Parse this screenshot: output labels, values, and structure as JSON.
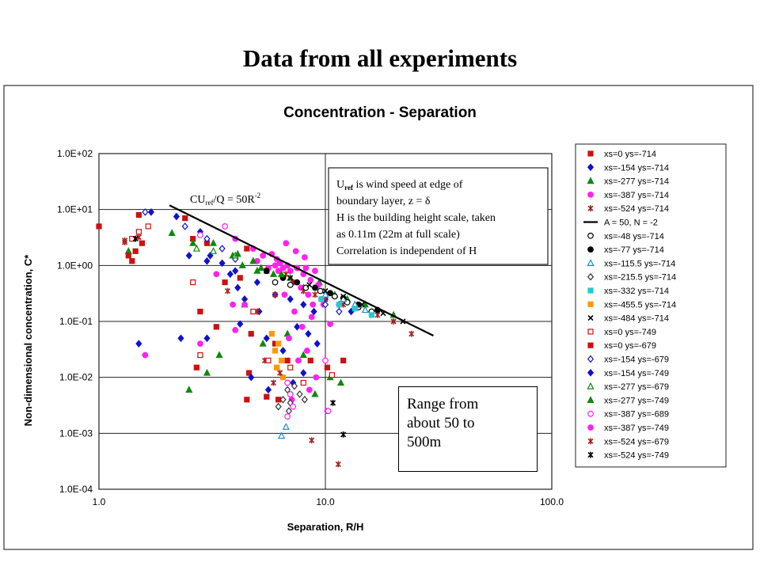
{
  "slide": {
    "title": "Data from all experiments",
    "callout_lines": [
      "Range from",
      "about 50 to",
      "500m"
    ]
  },
  "chart_data": {
    "type": "scatter",
    "title": "Concentration - Separation",
    "xlabel": "Separation, R/H",
    "ylabel": "Non-dimensional concentration, C*",
    "x_scale": "log",
    "y_scale": "log",
    "xlim": [
      1.0,
      100.0
    ],
    "ylim": [
      0.0001,
      100
    ],
    "x_ticks": [
      "1.0",
      "10.0",
      "100.0"
    ],
    "y_ticks": [
      "1.0E-04",
      "1.0E-03",
      "1.0E-02",
      "1.0E-01",
      "1.0E+00",
      "1.0E+01",
      "1.0E+02"
    ],
    "grid": true,
    "legend_position": "right",
    "formula_label": {
      "main": "CU",
      "sub": "ref",
      "rest": "/Q = 50R",
      "sup": "-2"
    },
    "annotation_lines": [
      {
        "main": "U",
        "sub": "ref",
        "rest": " is wind speed at edge of"
      },
      {
        "main": "boundary layer, z = δ",
        "sub": "",
        "rest": ""
      },
      {
        "main": "H is the building height scale, taken",
        "sub": "",
        "rest": ""
      },
      {
        "main": "as 0.11m (22m at full scale)",
        "sub": "",
        "rest": ""
      },
      {
        "main": "Correlation is independent of H",
        "sub": "",
        "rest": ""
      }
    ],
    "fit_line": {
      "name": "A = 50, N = -2",
      "A": 50,
      "N": -2,
      "x_range": [
        2.05,
        30
      ],
      "color": "#000000"
    },
    "series": [
      {
        "name": "xs=0 ys=-714",
        "marker": "square",
        "filled": true,
        "color": "#cc1111",
        "points": [
          [
            1.0,
            5
          ],
          [
            2.4,
            7
          ],
          [
            2.6,
            3
          ],
          [
            3.0,
            2.5
          ],
          [
            4.5,
            2.0
          ],
          [
            4.2,
            0.6
          ],
          [
            5.5,
            0.8
          ],
          [
            6.3,
            1.1
          ],
          [
            3.6,
            0.5
          ],
          [
            2.8,
            0.15
          ],
          [
            3.3,
            0.08
          ],
          [
            4.7,
            0.06
          ],
          [
            6.0,
            0.04
          ],
          [
            2.7,
            0.015
          ],
          [
            4.6,
            0.012
          ],
          [
            6.8,
            0.02
          ],
          [
            8.6,
            0.02
          ],
          [
            10.2,
            0.015
          ],
          [
            12.0,
            0.02
          ],
          [
            6.2,
            0.004
          ]
        ]
      },
      {
        "name": "xs=-154 ys=-714",
        "marker": "diamond",
        "filled": true,
        "color": "#1111cc",
        "points": [
          [
            1.7,
            9
          ],
          [
            2.2,
            7.5
          ],
          [
            2.8,
            4
          ],
          [
            3.1,
            1.5
          ],
          [
            3.5,
            1.1
          ],
          [
            3.8,
            0.7
          ],
          [
            4.1,
            0.4
          ],
          [
            4.4,
            0.25
          ],
          [
            5.1,
            0.15
          ],
          [
            6.0,
            0.3
          ],
          [
            7.0,
            0.25
          ],
          [
            8.0,
            0.2
          ],
          [
            8.9,
            0.15
          ],
          [
            10.0,
            0.25
          ],
          [
            11.5,
            0.2
          ],
          [
            13.0,
            0.15
          ],
          [
            4.2,
            0.09
          ],
          [
            5.5,
            0.05
          ],
          [
            3.0,
            0.05
          ],
          [
            6.5,
            0.03
          ],
          [
            7.5,
            0.08
          ],
          [
            8.4,
            0.06
          ],
          [
            9.2,
            0.04
          ],
          [
            1.5,
            0.04
          ],
          [
            2.3,
            0.05
          ],
          [
            4.7,
            0.01
          ],
          [
            7.2,
            0.008
          ],
          [
            8.0,
            0.012
          ],
          [
            5.6,
            0.006
          ]
        ]
      },
      {
        "name": "xs=-277 ys=-714",
        "marker": "triangle",
        "filled": true,
        "color": "#118811",
        "points": [
          [
            1.35,
            1.8
          ],
          [
            2.1,
            3.8
          ],
          [
            3.2,
            2.5
          ],
          [
            3.9,
            1.5
          ],
          [
            4.3,
            1.0
          ],
          [
            5.0,
            0.8
          ],
          [
            5.9,
            0.7
          ],
          [
            7.0,
            0.6
          ],
          [
            8.0,
            0.4
          ],
          [
            9.4,
            0.5
          ],
          [
            11.0,
            0.3
          ],
          [
            12.5,
            0.25
          ],
          [
            15.0,
            0.2
          ],
          [
            20.0,
            0.13
          ],
          [
            2.5,
            0.006
          ],
          [
            3.0,
            0.012
          ],
          [
            3.4,
            0.025
          ],
          [
            4.4,
            0.2
          ],
          [
            5.3,
            0.04
          ],
          [
            6.8,
            0.06
          ],
          [
            8.0,
            0.025
          ],
          [
            9.0,
            0.005
          ],
          [
            10.5,
            0.01
          ],
          [
            11.7,
            0.008
          ]
        ]
      },
      {
        "name": "xs=-387 ys=-714",
        "marker": "circle",
        "filled": true,
        "color": "#ff22ee",
        "points": [
          [
            1.6,
            0.025
          ],
          [
            2.8,
            0.04
          ],
          [
            3.3,
            0.7
          ],
          [
            3.9,
            0.2
          ],
          [
            4.0,
            0.07
          ],
          [
            4.4,
            0.2
          ],
          [
            5.0,
            1.2
          ],
          [
            5.6,
            0.9
          ],
          [
            6.0,
            1.0
          ],
          [
            6.2,
            0.8
          ],
          [
            6.5,
            0.9
          ],
          [
            6.8,
            1.0
          ],
          [
            7.0,
            0.8
          ],
          [
            7.2,
            0.5
          ],
          [
            7.5,
            0.9
          ],
          [
            7.8,
            0.4
          ],
          [
            8.0,
            0.7
          ],
          [
            8.2,
            0.9
          ],
          [
            8.4,
            0.3
          ],
          [
            8.6,
            0.55
          ],
          [
            8.8,
            0.2
          ],
          [
            9.0,
            0.8
          ],
          [
            9.3,
            0.45
          ],
          [
            9.6,
            0.25
          ],
          [
            6.6,
            0.3
          ],
          [
            7.3,
            0.15
          ],
          [
            7.9,
            0.08
          ],
          [
            8.7,
            0.12
          ],
          [
            9.8,
            0.2
          ],
          [
            10.5,
            0.09
          ],
          [
            6.9,
            0.05
          ],
          [
            7.6,
            0.02
          ],
          [
            8.3,
            0.03
          ],
          [
            9.1,
            0.01
          ],
          [
            7.1,
            0.004
          ],
          [
            8.5,
            0.006
          ],
          [
            10.2,
            0.0025
          ],
          [
            6.7,
            2.5
          ],
          [
            7.4,
            1.8
          ],
          [
            8.1,
            1.4
          ],
          [
            5.8,
            1.6
          ]
        ]
      },
      {
        "name": "xs=-524 ys=-714",
        "marker": "star",
        "filled": true,
        "color": "#aa2222",
        "points": [
          [
            1.3,
            2.6
          ],
          [
            3.7,
            0.35
          ],
          [
            5.0,
            0.15
          ],
          [
            6.0,
            0.3
          ],
          [
            6.7,
            0.7
          ],
          [
            7.2,
            0.5
          ],
          [
            8.0,
            0.35
          ],
          [
            9.0,
            0.3
          ],
          [
            10.0,
            0.25
          ],
          [
            12.0,
            0.2
          ],
          [
            14.0,
            0.18
          ],
          [
            17.0,
            0.13
          ],
          [
            20.0,
            0.1
          ],
          [
            24.0,
            0.06
          ],
          [
            8.7,
            0.00075
          ],
          [
            11.4,
            0.00028
          ],
          [
            5.4,
            0.02
          ]
        ]
      },
      {
        "name": "xs=-48 ys=-714",
        "marker": "circle",
        "filled": false,
        "color": "#000000",
        "points": [
          [
            6.0,
            0.5
          ],
          [
            7.0,
            0.45
          ],
          [
            8.2,
            0.4
          ],
          [
            9.5,
            0.35
          ],
          [
            11.0,
            0.28
          ],
          [
            12.5,
            0.22
          ],
          [
            14.0,
            0.18
          ],
          [
            16.0,
            0.15
          ]
        ]
      },
      {
        "name": "xs=-77 ys=-714",
        "marker": "circle",
        "filled": true,
        "color": "#000000",
        "points": [
          [
            5.5,
            0.8
          ],
          [
            6.5,
            0.6
          ],
          [
            7.5,
            0.5
          ],
          [
            9.0,
            0.4
          ],
          [
            10.5,
            0.32
          ],
          [
            12.0,
            0.26
          ],
          [
            14.0,
            0.2
          ],
          [
            17.0,
            0.16
          ]
        ]
      },
      {
        "name": "xs=-115.5 ys=-714",
        "marker": "triangle",
        "filled": false,
        "color": "#2288cc",
        "points": [
          [
            10.0,
            0.3
          ],
          [
            12.0,
            0.25
          ],
          [
            13.5,
            0.2
          ],
          [
            15.0,
            0.16
          ],
          [
            6.7,
            0.0013
          ],
          [
            6.4,
            0.0009
          ]
        ]
      },
      {
        "name": "xs=-215.5 ys=-714",
        "marker": "diamond",
        "filled": false,
        "color": "#333333",
        "points": [
          [
            6.5,
            0.004
          ],
          [
            6.8,
            0.006
          ],
          [
            7.0,
            0.0035
          ],
          [
            7.3,
            0.007
          ],
          [
            7.7,
            0.005
          ],
          [
            8.1,
            0.004
          ],
          [
            6.2,
            0.003
          ],
          [
            6.9,
            0.0025
          ]
        ]
      },
      {
        "name": "xs=-332 ys=-714",
        "marker": "square",
        "filled": true,
        "color": "#22cccc",
        "points": [
          [
            9.6,
            0.25
          ],
          [
            11.5,
            0.2
          ],
          [
            13.5,
            0.17
          ],
          [
            16.0,
            0.13
          ]
        ]
      },
      {
        "name": "xs=-455.5 ys=-714",
        "marker": "square",
        "filled": true,
        "color": "#ff9900",
        "points": [
          [
            5.8,
            0.06
          ],
          [
            6.2,
            0.04
          ],
          [
            6.0,
            0.03
          ],
          [
            6.4,
            0.02
          ],
          [
            6.1,
            0.015
          ],
          [
            6.5,
            0.01
          ]
        ]
      },
      {
        "name": "xs=-484 ys=-714",
        "marker": "cross",
        "filled": true,
        "color": "#000000",
        "points": [
          [
            7.0,
            0.6
          ],
          [
            8.5,
            0.45
          ],
          [
            10.0,
            0.35
          ],
          [
            12.0,
            0.28
          ],
          [
            14.5,
            0.2
          ],
          [
            18.0,
            0.14
          ],
          [
            22.0,
            0.1
          ]
        ]
      },
      {
        "name": "xs=0 ys=-749",
        "marker": "square",
        "filled": false,
        "color": "#cc1111",
        "points": [
          [
            1.4,
            3.0
          ],
          [
            1.5,
            4.0
          ],
          [
            1.65,
            5
          ],
          [
            2.6,
            0.5
          ],
          [
            4.8,
            0.15
          ],
          [
            5.6,
            0.02
          ],
          [
            7.0,
            0.015
          ],
          [
            8.0,
            0.008
          ],
          [
            10.7,
            0.011
          ],
          [
            2.8,
            0.025
          ]
        ]
      },
      {
        "name": "xs=0 ys=-679",
        "marker": "square",
        "filled": true,
        "color": "#cc1111",
        "points": [
          [
            1.35,
            1.5
          ],
          [
            1.45,
            1.8
          ],
          [
            1.55,
            2.5
          ],
          [
            1.5,
            8
          ],
          [
            1.4,
            1.2
          ],
          [
            4.5,
            0.004
          ],
          [
            5.5,
            0.0045
          ]
        ]
      },
      {
        "name": "xs=-154 ys=-679",
        "marker": "diamond",
        "filled": false,
        "color": "#1111cc",
        "points": [
          [
            1.6,
            9
          ],
          [
            2.4,
            5
          ],
          [
            3.0,
            3.0
          ],
          [
            3.5,
            2.0
          ],
          [
            4.0,
            1.3
          ],
          [
            10.0,
            0.2
          ],
          [
            11.5,
            0.15
          ]
        ]
      },
      {
        "name": "xs=-154 ys=-749",
        "marker": "diamond",
        "filled": true,
        "color": "#1111cc",
        "points": [
          [
            2.5,
            1.5
          ],
          [
            3.0,
            1.2
          ],
          [
            4.0,
            0.8
          ],
          [
            5.0,
            0.5
          ]
        ]
      },
      {
        "name": "xs=-277 ys=-679",
        "marker": "triangle",
        "filled": false,
        "color": "#118811",
        "points": [
          [
            2.7,
            2.0
          ],
          [
            3.2,
            1.8
          ],
          [
            4.0,
            1.5
          ]
        ]
      },
      {
        "name": "xs=-277 ys=-749",
        "marker": "triangle",
        "filled": true,
        "color": "#118811",
        "points": [
          [
            2.6,
            2.5
          ],
          [
            4.1,
            1.6
          ],
          [
            4.8,
            1.2
          ],
          [
            5.2,
            0.9
          ],
          [
            6.4,
            0.7
          ]
        ]
      },
      {
        "name": "xs=-387 ys=-689",
        "marker": "circle",
        "filled": false,
        "color": "#ff22ee",
        "points": [
          [
            3.6,
            5
          ],
          [
            2.8,
            3.5
          ],
          [
            6.8,
            0.002
          ],
          [
            7.0,
            0.005
          ],
          [
            7.2,
            0.003
          ],
          [
            10.3,
            0.0025
          ],
          [
            6.8,
            0.008
          ],
          [
            10.0,
            0.02
          ]
        ]
      },
      {
        "name": "xs=-387 ys=-749",
        "marker": "circle",
        "filled": true,
        "color": "#ff22ee",
        "points": [
          [
            4.0,
            3.0
          ],
          [
            4.8,
            2.0
          ],
          [
            5.3,
            1.5
          ],
          [
            6.1,
            1.3
          ],
          [
            6.3,
            1.1
          ]
        ]
      },
      {
        "name": "xs=-524 ys=-679",
        "marker": "star",
        "filled": true,
        "color": "#aa2222",
        "points": [
          [
            1.3,
            2.8
          ],
          [
            1.5,
            3.2
          ],
          [
            5.9,
            0.008
          ],
          [
            6.3,
            0.012
          ]
        ]
      },
      {
        "name": "xs=-524 ys=-749",
        "marker": "star",
        "filled": true,
        "color": "#000000",
        "points": [
          [
            1.45,
            3.0
          ],
          [
            12.0,
            0.00095
          ],
          [
            10.8,
            0.0035
          ]
        ]
      }
    ]
  }
}
